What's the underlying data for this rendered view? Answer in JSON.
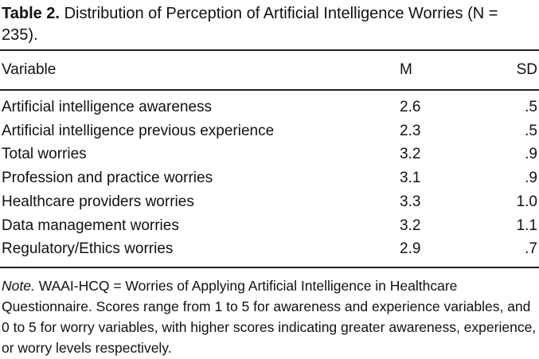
{
  "caption": {
    "label": "Table 2.",
    "text": "Distribution of Perception of Artificial Intelligence Worries (N = 235)."
  },
  "table": {
    "headers": [
      "Variable",
      "M",
      "SD"
    ],
    "rows": [
      [
        "Artificial intelligence awareness",
        "2.6",
        ".5"
      ],
      [
        "Artificial intelligence previous experience",
        "2.3",
        ".5"
      ],
      [
        "Total worries",
        "3.2",
        ".9"
      ],
      [
        "Profession and practice worries",
        "3.1",
        ".9"
      ],
      [
        "Healthcare providers worries",
        "3.3",
        "1.0"
      ],
      [
        "Data management worries",
        "3.2",
        "1.1"
      ],
      [
        "Regulatory/Ethics worries",
        "2.9",
        ".7"
      ]
    ]
  },
  "note": {
    "label": "Note.",
    "text": "WAAI-HCQ = Worries of Applying Artificial Intelligence in Healthcare Questionnaire. Scores range from 1 to 5 for awareness and experience variables, and 0 to 5 for worry variables, with higher scores indicating greater awareness, experience, or worry levels respectively."
  }
}
